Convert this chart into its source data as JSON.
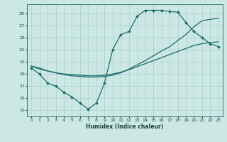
{
  "xlabel": "Humidex (Indice chaleur)",
  "bg_color": "#cce8e5",
  "grid_color": "#aacfcc",
  "line_color": "#1a6b6b",
  "xlim": [
    -0.5,
    23.5
  ],
  "ylim": [
    12,
    30.5
  ],
  "yticks": [
    13,
    15,
    17,
    19,
    21,
    23,
    25,
    27,
    29
  ],
  "xticks": [
    0,
    1,
    2,
    3,
    4,
    5,
    6,
    7,
    8,
    9,
    10,
    11,
    12,
    13,
    14,
    15,
    16,
    17,
    18,
    19,
    20,
    21,
    22,
    23
  ],
  "line1_x": [
    0,
    1,
    2,
    3,
    4,
    5,
    6,
    7,
    8,
    9,
    10,
    11,
    12,
    13,
    14,
    15,
    16,
    17,
    18,
    19,
    20,
    21,
    22,
    23
  ],
  "line1_y": [
    20.0,
    19.0,
    17.5,
    17.0,
    16.0,
    15.2,
    14.2,
    13.2,
    14.2,
    17.5,
    23.0,
    25.5,
    26.0,
    28.5,
    29.5,
    29.5,
    29.5,
    29.3,
    29.2,
    27.5,
    26.0,
    25.0,
    24.0,
    23.5
  ],
  "line2_x": [
    0,
    1,
    2,
    3,
    4,
    5,
    6,
    7,
    8,
    9,
    10,
    11,
    12,
    13,
    14,
    15,
    16,
    17,
    18,
    19,
    20,
    21,
    22,
    23
  ],
  "line2_y": [
    20.3,
    19.8,
    19.5,
    19.2,
    19.0,
    18.9,
    18.8,
    18.7,
    18.7,
    18.8,
    19.0,
    19.3,
    19.7,
    20.2,
    20.7,
    21.2,
    21.7,
    22.2,
    22.7,
    23.2,
    23.7,
    24.0,
    24.2,
    24.3
  ],
  "line3_x": [
    0,
    1,
    2,
    3,
    4,
    5,
    6,
    7,
    8,
    9,
    10,
    11,
    12,
    13,
    14,
    15,
    16,
    17,
    18,
    19,
    20,
    21,
    22,
    23
  ],
  "line3_y": [
    20.3,
    20.0,
    19.5,
    19.2,
    18.9,
    18.7,
    18.6,
    18.5,
    18.5,
    18.6,
    18.8,
    19.2,
    19.8,
    20.5,
    21.2,
    22.0,
    22.8,
    23.5,
    24.5,
    25.5,
    26.8,
    27.8,
    28.0,
    28.2
  ]
}
